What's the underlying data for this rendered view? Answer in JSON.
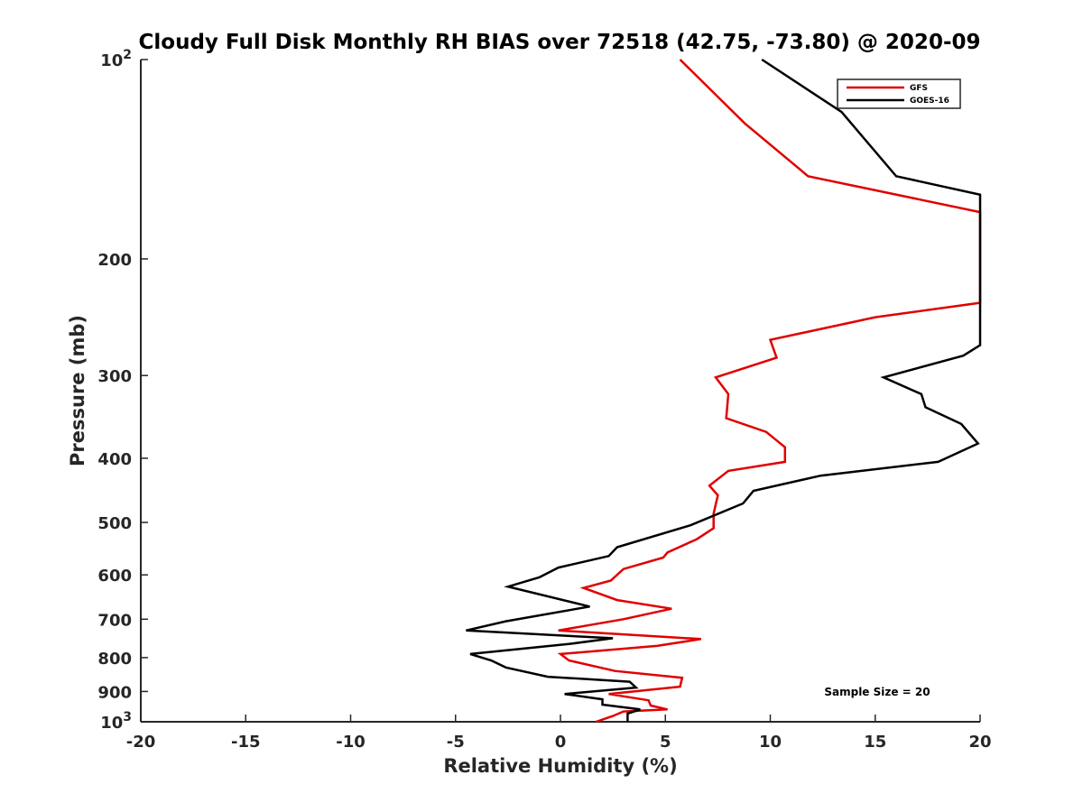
{
  "chart_data": {
    "type": "line",
    "title": "Cloudy Full Disk Monthly RH BIAS over 72518 (42.75, -73.80) @ 2020-09",
    "xlabel": "Relative Humidity (%)",
    "ylabel": "Pressure (mb)",
    "xlim": [
      -20,
      20
    ],
    "ylim": [
      1000,
      100
    ],
    "y_scale": "log",
    "y_reversed": true,
    "grid": false,
    "legend_position": "top-right",
    "x_ticks": [
      "-20",
      "-15",
      "-10",
      "-5",
      "0",
      "5",
      "10",
      "15",
      "20"
    ],
    "y_ticks": [
      {
        "value": 100,
        "label": "10",
        "sup": "2"
      },
      {
        "value": 200,
        "label": "200",
        "sup": ""
      },
      {
        "value": 300,
        "label": "300",
        "sup": ""
      },
      {
        "value": 400,
        "label": "400",
        "sup": ""
      },
      {
        "value": 500,
        "label": "500",
        "sup": ""
      },
      {
        "value": 600,
        "label": "600",
        "sup": ""
      },
      {
        "value": 700,
        "label": "700",
        "sup": ""
      },
      {
        "value": 800,
        "label": "800",
        "sup": ""
      },
      {
        "value": 900,
        "label": "900",
        "sup": ""
      },
      {
        "value": 1000,
        "label": "10",
        "sup": "3"
      }
    ],
    "annotation": "Sample Size = 20",
    "series": [
      {
        "name": "GFS",
        "color": "#e00000",
        "points": [
          [
            5.7,
            100
          ],
          [
            8.8,
            125
          ],
          [
            11.8,
            150
          ],
          [
            20.0,
            170
          ],
          [
            20.0,
            233
          ],
          [
            15.0,
            245
          ],
          [
            10.0,
            265
          ],
          [
            10.3,
            282
          ],
          [
            7.4,
            302
          ],
          [
            8.0,
            320
          ],
          [
            7.9,
            348
          ],
          [
            9.8,
            365
          ],
          [
            10.7,
            385
          ],
          [
            10.7,
            405
          ],
          [
            8.0,
            418
          ],
          [
            7.1,
            440
          ],
          [
            7.5,
            455
          ],
          [
            7.3,
            485
          ],
          [
            7.3,
            510
          ],
          [
            6.5,
            530
          ],
          [
            5.1,
            555
          ],
          [
            4.9,
            565
          ],
          [
            3.0,
            588
          ],
          [
            2.4,
            612
          ],
          [
            1.1,
            628
          ],
          [
            2.7,
            655
          ],
          [
            5.3,
            675
          ],
          [
            3.0,
            700
          ],
          [
            -0.1,
            728
          ],
          [
            6.7,
            750
          ],
          [
            4.6,
            768
          ],
          [
            0.0,
            790
          ],
          [
            0.4,
            808
          ],
          [
            2.6,
            838
          ],
          [
            5.8,
            858
          ],
          [
            5.7,
            885
          ],
          [
            2.3,
            908
          ],
          [
            4.2,
            928
          ],
          [
            4.3,
            945
          ],
          [
            5.1,
            958
          ],
          [
            3.0,
            965
          ],
          [
            2.5,
            980
          ],
          [
            1.7,
            1000
          ]
        ]
      },
      {
        "name": "GOES-16",
        "color": "#000000",
        "points": [
          [
            9.6,
            100
          ],
          [
            13.4,
            120
          ],
          [
            16.0,
            150
          ],
          [
            20.0,
            160
          ],
          [
            20.0,
            270
          ],
          [
            19.2,
            280
          ],
          [
            15.4,
            302
          ],
          [
            17.2,
            320
          ],
          [
            17.4,
            335
          ],
          [
            19.1,
            355
          ],
          [
            19.9,
            380
          ],
          [
            18.0,
            405
          ],
          [
            12.4,
            425
          ],
          [
            9.2,
            448
          ],
          [
            8.7,
            468
          ],
          [
            6.2,
            505
          ],
          [
            2.7,
            545
          ],
          [
            2.3,
            562
          ],
          [
            -0.1,
            585
          ],
          [
            -1.0,
            605
          ],
          [
            -2.5,
            625
          ],
          [
            1.4,
            670
          ],
          [
            -2.6,
            705
          ],
          [
            -4.5,
            728
          ],
          [
            2.5,
            748
          ],
          [
            0.4,
            763
          ],
          [
            -4.3,
            790
          ],
          [
            -3.3,
            808
          ],
          [
            -2.6,
            828
          ],
          [
            -0.6,
            855
          ],
          [
            3.3,
            870
          ],
          [
            3.6,
            888
          ],
          [
            0.2,
            908
          ],
          [
            2.0,
            925
          ],
          [
            2.0,
            942
          ],
          [
            3.8,
            958
          ],
          [
            3.2,
            972
          ],
          [
            3.2,
            1000
          ]
        ]
      }
    ]
  }
}
